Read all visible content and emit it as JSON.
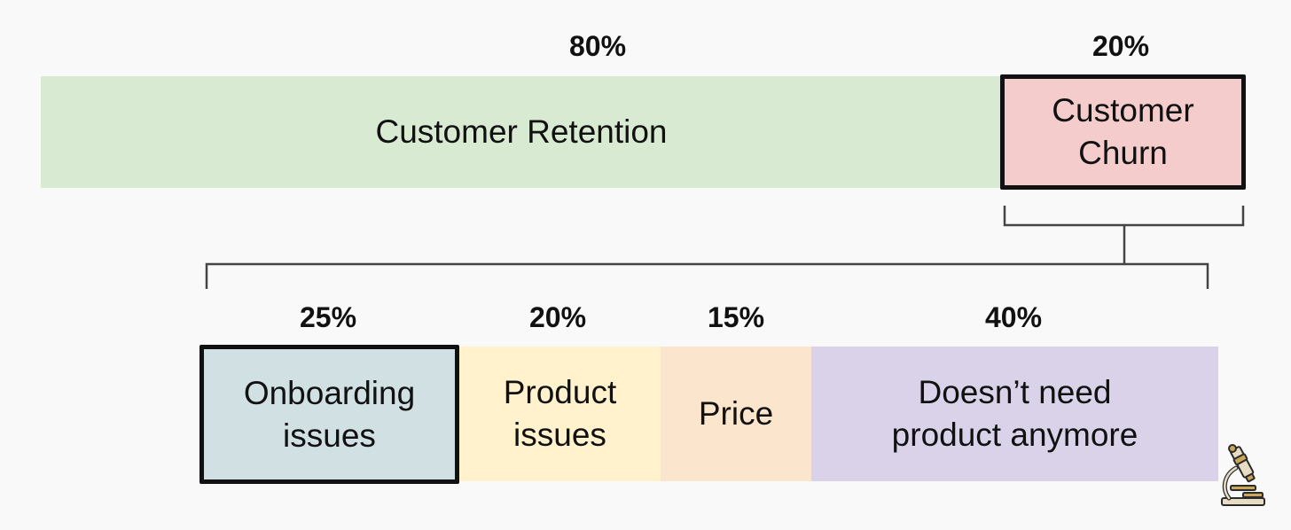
{
  "top": {
    "retention": {
      "percent": "80%",
      "label": "Customer Retention",
      "color": "#d9ead3"
    },
    "churn": {
      "percent": "20%",
      "label": "Customer\nChurn",
      "color": "#f4cccc"
    }
  },
  "breakdown": [
    {
      "percent": "25%",
      "label": "Onboarding\nissues",
      "color": "#d0e0e3"
    },
    {
      "percent": "20%",
      "label": "Product\nissues",
      "color": "#fff2cc"
    },
    {
      "percent": "15%",
      "label": "Price",
      "color": "#fce5cd"
    },
    {
      "percent": "40%",
      "label": "Doesn’t need\nproduct anymore",
      "color": "#d9d2e9"
    }
  ],
  "icons": {
    "corner": "microscope-icon"
  }
}
